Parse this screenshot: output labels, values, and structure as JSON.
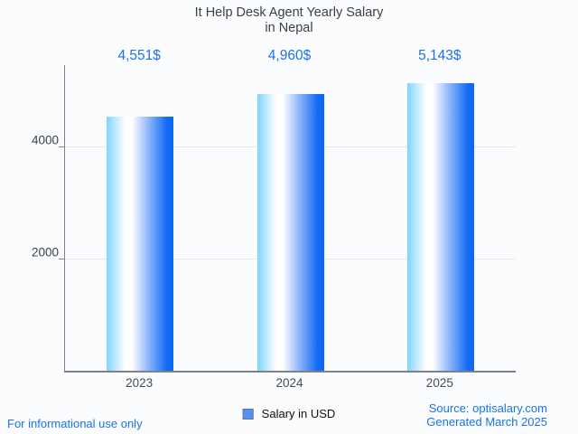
{
  "title": {
    "line1": "It Help Desk Agent Yearly Salary",
    "line2": "in Nepal"
  },
  "chart_data": {
    "type": "bar",
    "categories": [
      "2023",
      "2024",
      "2025"
    ],
    "values": [
      4551,
      4960,
      5143
    ],
    "value_labels": [
      "4,551$",
      "4,960$",
      "5,143$"
    ],
    "series_name": "Salary in USD",
    "title": "It Help Desk Agent Yearly Salary in Nepal",
    "xlabel": "",
    "ylabel": "",
    "ylim": [
      0,
      5474
    ],
    "yticks": [
      2000,
      4000
    ],
    "grid": true,
    "legend_position": "bottom",
    "bar_gradient": [
      "#7fd4ff",
      "#ffffff",
      "#9bbdfb",
      "#146cf6",
      "#0d66ef"
    ],
    "value_label_color": "#1a73e8"
  },
  "legend": {
    "label": "Salary in USD",
    "swatch_color": "#4d90fe"
  },
  "footer": {
    "left": "For informational use only",
    "source": "Source: optisalary.com",
    "generated": "Generated March 2025"
  }
}
